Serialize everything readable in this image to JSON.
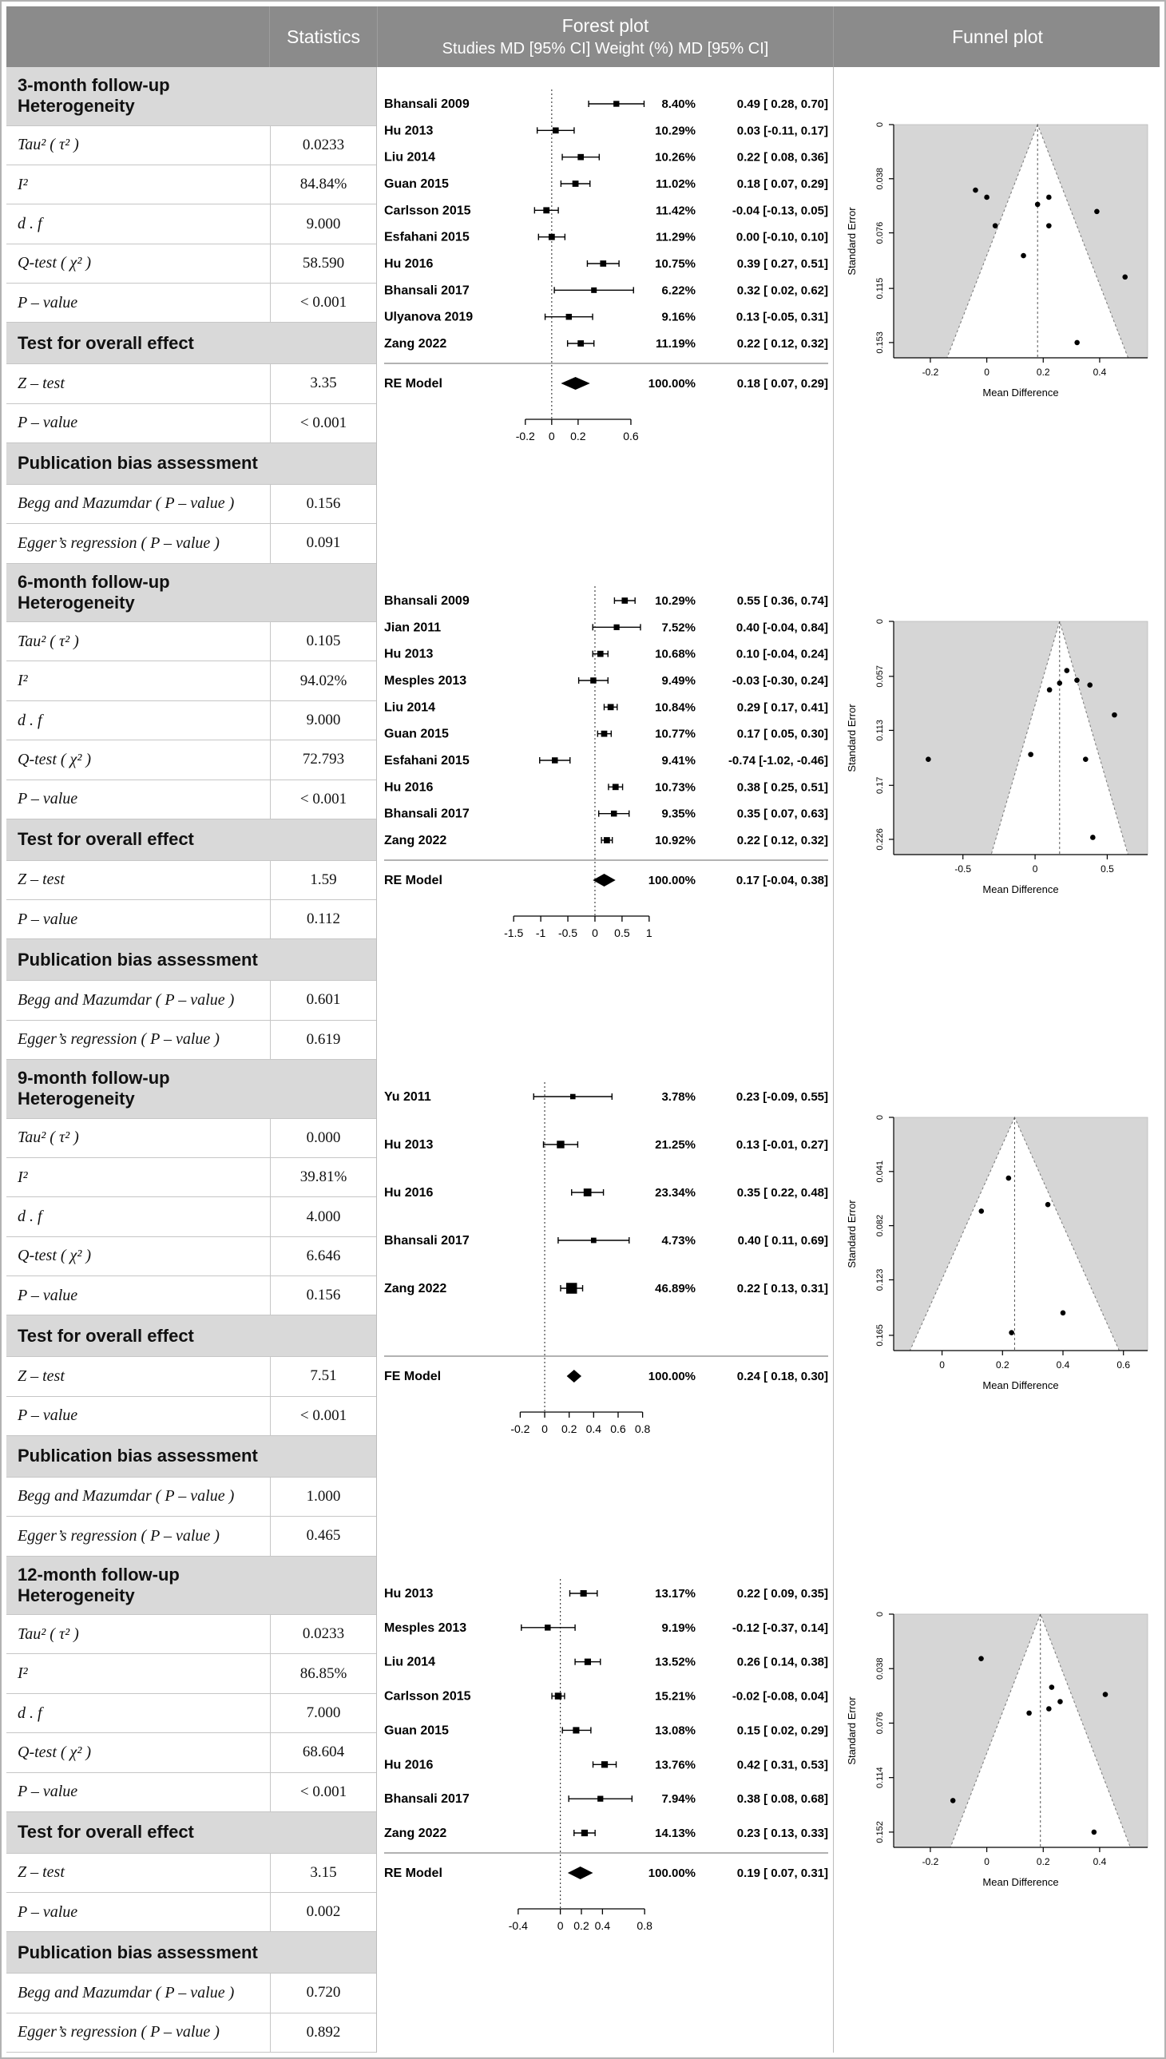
{
  "header": {
    "statistics": "Statistics",
    "forest_title": "Forest plot",
    "forest_subtitle": "Studies MD [95% CI] Weight (%) MD [95% CI]",
    "funnel_title": "Funnel plot"
  },
  "colors": {
    "header_bg": "#8b8b8b",
    "group_header_bg": "#d9d9d9",
    "border": "#c6c6c6",
    "funnel_panel_bg": "#d6d6d6",
    "point": "#000000"
  },
  "sections": [
    {
      "id": "3-month",
      "stats_rows": [
        {
          "type": "header",
          "label": "3-month follow-up",
          "label2": "Heterogeneity"
        },
        {
          "type": "row",
          "label": "Tau² ( τ² )",
          "value": "0.0233"
        },
        {
          "type": "row",
          "label": "I²",
          "value": "84.84%"
        },
        {
          "type": "row",
          "label": "d . f",
          "value": "9.000"
        },
        {
          "type": "row",
          "label": "Q-test ( χ² )",
          "value": "58.590"
        },
        {
          "type": "row",
          "label": "P – value",
          "value": "< 0.001"
        },
        {
          "type": "header",
          "label": "Test for overall effect"
        },
        {
          "type": "row",
          "label": "Z – test",
          "value": "3.35"
        },
        {
          "type": "row",
          "label": "P – value",
          "value": "< 0.001"
        },
        {
          "type": "header",
          "label": "Publication bias assessment"
        },
        {
          "type": "row",
          "label": "Begg and Mazumdar ( P – value )",
          "value": "0.156"
        },
        {
          "type": "row",
          "label": "Egger’s regression ( P – value )",
          "value": "0.091"
        }
      ]
    },
    {
      "id": "6-month",
      "stats_rows": [
        {
          "type": "header",
          "label": "6-month follow-up",
          "label2": "Heterogeneity"
        },
        {
          "type": "row",
          "label": "Tau² ( τ² )",
          "value": "0.105"
        },
        {
          "type": "row",
          "label": "I²",
          "value": "94.02%"
        },
        {
          "type": "row",
          "label": "d . f",
          "value": "9.000"
        },
        {
          "type": "row",
          "label": "Q-test ( χ² )",
          "value": "72.793"
        },
        {
          "type": "row",
          "label": "P – value",
          "value": "< 0.001"
        },
        {
          "type": "header",
          "label": "Test for overall effect"
        },
        {
          "type": "row",
          "label": "Z – test",
          "value": "1.59"
        },
        {
          "type": "row",
          "label": "P – value",
          "value": "0.112"
        },
        {
          "type": "header",
          "label": "Publication bias assessment"
        },
        {
          "type": "row",
          "label": "Begg and Mazumdar ( P – value )",
          "value": "0.601"
        },
        {
          "type": "row",
          "label": "Egger’s regression ( P – value )",
          "value": "0.619"
        }
      ]
    },
    {
      "id": "9-month",
      "stats_rows": [
        {
          "type": "header",
          "label": "9-month follow-up",
          "label2": "Heterogeneity"
        },
        {
          "type": "row",
          "label": "Tau² ( τ² )",
          "value": "0.000"
        },
        {
          "type": "row",
          "label": "I²",
          "value": "39.81%"
        },
        {
          "type": "row",
          "label": "d . f",
          "value": "4.000"
        },
        {
          "type": "row",
          "label": "Q-test ( χ² )",
          "value": "6.646"
        },
        {
          "type": "row",
          "label": "P – value",
          "value": "0.156"
        },
        {
          "type": "header",
          "label": "Test for overall effect"
        },
        {
          "type": "row",
          "label": "Z – test",
          "value": "7.51"
        },
        {
          "type": "row",
          "label": "P – value",
          "value": "< 0.001"
        },
        {
          "type": "header",
          "label": "Publication bias assessment"
        },
        {
          "type": "row",
          "label": "Begg and Mazumdar ( P – value )",
          "value": "1.000"
        },
        {
          "type": "row",
          "label": "Egger’s regression ( P – value )",
          "value": "0.465"
        }
      ]
    },
    {
      "id": "12-month",
      "stats_rows": [
        {
          "type": "header",
          "label": "12-month follow-up",
          "label2": "Heterogeneity"
        },
        {
          "type": "row",
          "label": "Tau² ( τ² )",
          "value": "0.0233"
        },
        {
          "type": "row",
          "label": "I²",
          "value": "86.85%"
        },
        {
          "type": "row",
          "label": "d . f",
          "value": "7.000"
        },
        {
          "type": "row",
          "label": "Q-test ( χ² )",
          "value": "68.604"
        },
        {
          "type": "row",
          "label": "P – value",
          "value": "< 0.001"
        },
        {
          "type": "header",
          "label": "Test for overall effect"
        },
        {
          "type": "row",
          "label": "Z – test",
          "value": "3.15"
        },
        {
          "type": "row",
          "label": "P – value",
          "value": "0.002"
        },
        {
          "type": "header",
          "label": "Publication bias assessment"
        },
        {
          "type": "row",
          "label": "Begg and Mazumdar ( P – value )",
          "value": "0.720"
        },
        {
          "type": "row",
          "label": "Egger’s regression ( P – value )",
          "value": "0.892"
        }
      ]
    }
  ],
  "chart_data": [
    {
      "type": "forest",
      "section": "3-month follow-up",
      "studies": [
        {
          "label": "Bhansali 2009",
          "weight": 8.4,
          "md": 0.49,
          "lo": 0.28,
          "hi": 0.7
        },
        {
          "label": "Hu 2013",
          "weight": 10.29,
          "md": 0.03,
          "lo": -0.11,
          "hi": 0.17
        },
        {
          "label": "Liu 2014",
          "weight": 10.26,
          "md": 0.22,
          "lo": 0.08,
          "hi": 0.36
        },
        {
          "label": "Guan 2015",
          "weight": 11.02,
          "md": 0.18,
          "lo": 0.07,
          "hi": 0.29
        },
        {
          "label": "Carlsson 2015",
          "weight": 11.42,
          "md": -0.04,
          "lo": -0.13,
          "hi": 0.05
        },
        {
          "label": "Esfahani 2015",
          "weight": 11.29,
          "md": 0.0,
          "lo": -0.1,
          "hi": 0.1
        },
        {
          "label": "Hu 2016",
          "weight": 10.75,
          "md": 0.39,
          "lo": 0.27,
          "hi": 0.51
        },
        {
          "label": "Bhansali 2017",
          "weight": 6.22,
          "md": 0.32,
          "lo": 0.02,
          "hi": 0.62
        },
        {
          "label": "Ulyanova 2019",
          "weight": 9.16,
          "md": 0.13,
          "lo": -0.05,
          "hi": 0.31
        },
        {
          "label": "Zang 2022",
          "weight": 11.19,
          "md": 0.22,
          "lo": 0.12,
          "hi": 0.32
        }
      ],
      "model": {
        "label": "RE Model",
        "weight": 100.0,
        "md": 0.18,
        "lo": 0.07,
        "hi": 0.29
      },
      "x_ticks": [
        -0.2,
        0,
        0.2,
        0.6
      ],
      "x_range": [
        -0.35,
        0.8
      ]
    },
    {
      "type": "funnel",
      "section": "3-month follow-up",
      "ylabel": "Standard Error",
      "xlabel": "Mean Difference",
      "y_ticks": [
        0,
        0.038,
        0.076,
        0.115,
        0.153
      ],
      "x_ticks": [
        -0.2,
        0,
        0.2,
        0.4
      ],
      "x_range": [
        -0.33,
        0.57
      ],
      "center": 0.18,
      "points": [
        [
          0.49,
          0.107
        ],
        [
          0.03,
          0.071
        ],
        [
          0.22,
          0.071
        ],
        [
          0.18,
          0.056
        ],
        [
          -0.04,
          0.046
        ],
        [
          0.0,
          0.051
        ],
        [
          0.39,
          0.061
        ],
        [
          0.32,
          0.153
        ],
        [
          0.13,
          0.092
        ],
        [
          0.22,
          0.051
        ]
      ]
    },
    {
      "type": "forest",
      "section": "6-month follow-up",
      "studies": [
        {
          "label": "Bhansali 2009",
          "weight": 10.29,
          "md": 0.55,
          "lo": 0.36,
          "hi": 0.74
        },
        {
          "label": "Jian 2011",
          "weight": 7.52,
          "md": 0.4,
          "lo": -0.04,
          "hi": 0.84
        },
        {
          "label": "Hu 2013",
          "weight": 10.68,
          "md": 0.1,
          "lo": -0.04,
          "hi": 0.24
        },
        {
          "label": "Mesples 2013",
          "weight": 9.49,
          "md": -0.03,
          "lo": -0.3,
          "hi": 0.24
        },
        {
          "label": "Liu 2014",
          "weight": 10.84,
          "md": 0.29,
          "lo": 0.17,
          "hi": 0.41
        },
        {
          "label": "Guan 2015",
          "weight": 10.77,
          "md": 0.17,
          "lo": 0.05,
          "hi": 0.3
        },
        {
          "label": "Esfahani 2015",
          "weight": 9.41,
          "md": -0.74,
          "lo": -1.02,
          "hi": -0.46
        },
        {
          "label": "Hu 2016",
          "weight": 10.73,
          "md": 0.38,
          "lo": 0.25,
          "hi": 0.51
        },
        {
          "label": "Bhansali 2017",
          "weight": 9.35,
          "md": 0.35,
          "lo": 0.07,
          "hi": 0.63
        },
        {
          "label": "Zang 2022",
          "weight": 10.92,
          "md": 0.22,
          "lo": 0.12,
          "hi": 0.32
        }
      ],
      "model": {
        "label": "RE Model",
        "weight": 100.0,
        "md": 0.17,
        "lo": -0.04,
        "hi": 0.38
      },
      "x_ticks": [
        -1.5,
        -1,
        -0.5,
        0,
        0.5,
        1
      ],
      "x_range": [
        -1.65,
        1.15
      ]
    },
    {
      "type": "funnel",
      "section": "6-month follow-up",
      "ylabel": "Standard Error",
      "xlabel": "Mean Difference",
      "y_ticks": [
        0,
        0.057,
        0.113,
        0.17,
        0.226
      ],
      "x_ticks": [
        -0.5,
        0,
        0.5
      ],
      "x_range": [
        -0.98,
        0.78
      ],
      "center": 0.17,
      "points": [
        [
          0.55,
          0.097
        ],
        [
          0.4,
          0.224
        ],
        [
          0.1,
          0.071
        ],
        [
          -0.03,
          0.138
        ],
        [
          0.29,
          0.061
        ],
        [
          0.17,
          0.064
        ],
        [
          -0.74,
          0.143
        ],
        [
          0.38,
          0.066
        ],
        [
          0.35,
          0.143
        ],
        [
          0.22,
          0.051
        ]
      ]
    },
    {
      "type": "forest",
      "section": "9-month follow-up",
      "studies": [
        {
          "label": "Yu 2011",
          "weight": 3.78,
          "md": 0.23,
          "lo": -0.09,
          "hi": 0.55
        },
        {
          "label": "Hu 2013",
          "weight": 21.25,
          "md": 0.13,
          "lo": -0.01,
          "hi": 0.27
        },
        {
          "label": "Hu 2016",
          "weight": 23.34,
          "md": 0.35,
          "lo": 0.22,
          "hi": 0.48
        },
        {
          "label": "Bhansali 2017",
          "weight": 4.73,
          "md": 0.4,
          "lo": 0.11,
          "hi": 0.69
        },
        {
          "label": "Zang 2022",
          "weight": 46.89,
          "md": 0.22,
          "lo": 0.13,
          "hi": 0.31
        }
      ],
      "model": {
        "label": "FE Model",
        "weight": 100.0,
        "md": 0.24,
        "lo": 0.18,
        "hi": 0.3
      },
      "x_ticks": [
        -0.2,
        0,
        0.2,
        0.4,
        0.6,
        0.8
      ],
      "x_range": [
        -0.32,
        0.92
      ]
    },
    {
      "type": "funnel",
      "section": "9-month follow-up",
      "ylabel": "Standard Error",
      "xlabel": "Mean Difference",
      "y_ticks": [
        0,
        0.041,
        0.082,
        0.123,
        0.165
      ],
      "x_ticks": [
        0,
        0.2,
        0.4,
        0.6
      ],
      "x_range": [
        -0.16,
        0.68
      ],
      "center": 0.24,
      "points": [
        [
          0.23,
          0.163
        ],
        [
          0.13,
          0.071
        ],
        [
          0.35,
          0.066
        ],
        [
          0.4,
          0.148
        ],
        [
          0.22,
          0.046
        ]
      ]
    },
    {
      "type": "forest",
      "section": "12-month follow-up",
      "studies": [
        {
          "label": "Hu 2013",
          "weight": 13.17,
          "md": 0.22,
          "lo": 0.09,
          "hi": 0.35
        },
        {
          "label": "Mesples 2013",
          "weight": 9.19,
          "md": -0.12,
          "lo": -0.37,
          "hi": 0.14
        },
        {
          "label": "Liu 2014",
          "weight": 13.52,
          "md": 0.26,
          "lo": 0.14,
          "hi": 0.38
        },
        {
          "label": "Carlsson 2015",
          "weight": 15.21,
          "md": -0.02,
          "lo": -0.08,
          "hi": 0.04
        },
        {
          "label": "Guan 2015",
          "weight": 13.08,
          "md": 0.15,
          "lo": 0.02,
          "hi": 0.29
        },
        {
          "label": "Hu 2016",
          "weight": 13.76,
          "md": 0.42,
          "lo": 0.31,
          "hi": 0.53
        },
        {
          "label": "Bhansali 2017",
          "weight": 7.94,
          "md": 0.38,
          "lo": 0.08,
          "hi": 0.68
        },
        {
          "label": "Zang 2022",
          "weight": 14.13,
          "md": 0.23,
          "lo": 0.13,
          "hi": 0.33
        }
      ],
      "model": {
        "label": "RE Model",
        "weight": 100.0,
        "md": 0.19,
        "lo": 0.07,
        "hi": 0.31
      },
      "x_ticks": [
        -0.4,
        0,
        0.2,
        0.4,
        0.8
      ],
      "x_range": [
        -0.52,
        0.92
      ]
    },
    {
      "type": "funnel",
      "section": "12-month follow-up",
      "ylabel": "Standard Error",
      "xlabel": "Mean Difference",
      "y_ticks": [
        0,
        0.038,
        0.076,
        0.114,
        0.152
      ],
      "x_ticks": [
        -0.2,
        0,
        0.2,
        0.4
      ],
      "x_range": [
        -0.33,
        0.57
      ],
      "center": 0.19,
      "points": [
        [
          0.22,
          0.066
        ],
        [
          -0.12,
          0.13
        ],
        [
          0.26,
          0.061
        ],
        [
          -0.02,
          0.031
        ],
        [
          0.15,
          0.069
        ],
        [
          0.42,
          0.056
        ],
        [
          0.38,
          0.152
        ],
        [
          0.23,
          0.051
        ]
      ]
    }
  ]
}
